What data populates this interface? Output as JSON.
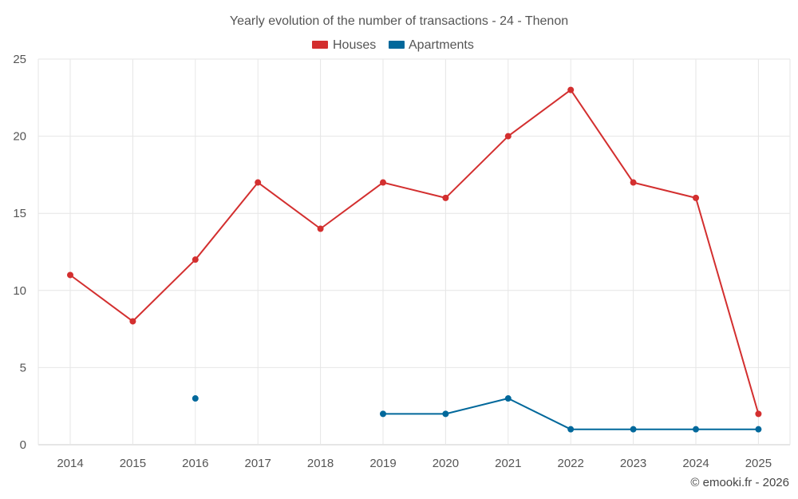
{
  "chart_data": {
    "type": "line",
    "title": "Yearly evolution of the number of transactions - 24 - Thenon",
    "categories": [
      "2014",
      "2015",
      "2016",
      "2017",
      "2018",
      "2019",
      "2020",
      "2021",
      "2022",
      "2023",
      "2024",
      "2025"
    ],
    "series": [
      {
        "name": "Houses",
        "color": "#d32f2f",
        "values": [
          11,
          8,
          12,
          17,
          14,
          17,
          16,
          20,
          23,
          17,
          16,
          2
        ]
      },
      {
        "name": "Apartments",
        "color": "#01689b",
        "values": [
          null,
          null,
          3,
          null,
          null,
          2,
          2,
          3,
          1,
          1,
          1,
          1
        ]
      }
    ],
    "ylim": [
      0,
      25
    ],
    "yticks": [
      "0",
      "5",
      "10",
      "15",
      "20",
      "25"
    ],
    "ytick_values": [
      0,
      5,
      10,
      15,
      20,
      25
    ],
    "xlabel": "",
    "ylabel": "",
    "grid": true,
    "legend_position": "top-center"
  },
  "credit": "© emooki.fr - 2026"
}
